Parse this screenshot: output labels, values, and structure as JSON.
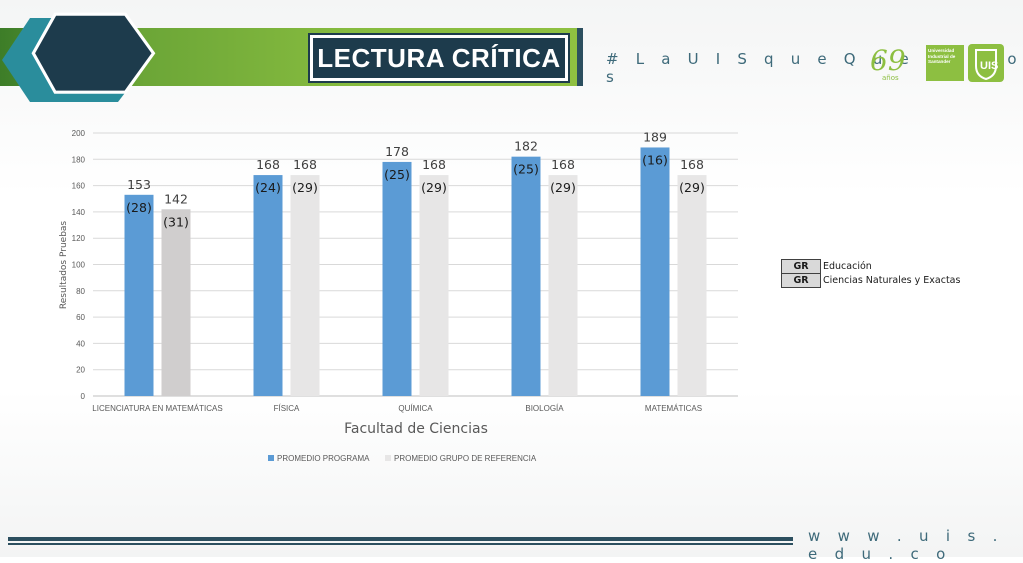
{
  "header": {
    "title": "LECTURA CRÍTICA",
    "hashtag": "# L a U I S q u e Q u e r e m o s"
  },
  "logos": {
    "anniversary_number": "69",
    "anniversary_word": "años",
    "university_lines": [
      "Universidad",
      "Industrial de",
      "Santander"
    ]
  },
  "footer": {
    "url": "w w w . u i s . e d u . c o"
  },
  "colors": {
    "programa": "#5b9bd5",
    "grupo_referencia": "#e7e6e6",
    "licenciatura_referencia": "#d0cece",
    "header_green": "#86bb3f",
    "title_navy": "#1d3b4c",
    "accent_teal": "#2a8d9c"
  },
  "gr_legend": {
    "rows": [
      {
        "code": "GR",
        "description": "Educación"
      },
      {
        "code": "GR",
        "description": "Ciencias Naturales y Exactas"
      }
    ]
  },
  "chart_data": {
    "type": "bar",
    "title": "",
    "xlabel": "Facultad de Ciencias",
    "ylabel": "Resultados Pruebas",
    "ylim": [
      0,
      200
    ],
    "yticks": [
      0,
      20,
      40,
      60,
      80,
      100,
      120,
      140,
      160,
      180,
      200
    ],
    "grid": true,
    "legend_position": "bottom",
    "categories": [
      "LICENCIATURA EN MATEMÁTICAS",
      "FÍSICA",
      "QUÍMICA",
      "BIOLOGÍA",
      "MATEMÁTICAS"
    ],
    "series": [
      {
        "name": "PROMEDIO PROGRAMA",
        "values": [
          153,
          168,
          178,
          182,
          189
        ],
        "inner_labels": [
          "(28)",
          "(24)",
          "(25)",
          "(25)",
          "(16)"
        ]
      },
      {
        "name": "PROMEDIO GRUPO DE REFERENCIA",
        "values": [
          142,
          168,
          168,
          168,
          168
        ],
        "inner_labels": [
          "(31)",
          "(29)",
          "(29)",
          "(29)",
          "(29)"
        ]
      }
    ]
  }
}
